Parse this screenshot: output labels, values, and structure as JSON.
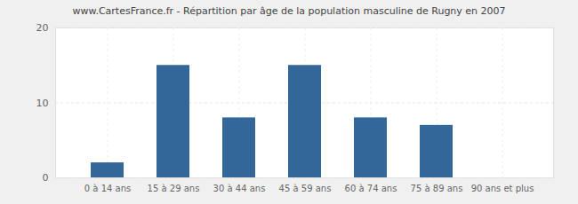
{
  "chart_data": {
    "type": "bar",
    "title": "www.CartesFrance.fr - Répartition par âge de la population masculine de Rugny en 2007",
    "categories": [
      "0 à 14 ans",
      "15 à 29 ans",
      "30 à 44 ans",
      "45 à 59 ans",
      "60 à 74 ans",
      "75 à 89 ans",
      "90 ans et plus"
    ],
    "values": [
      2,
      15,
      8,
      15,
      8,
      7,
      0
    ],
    "color": "#336699",
    "ylim": [
      0,
      20
    ],
    "yticks": [
      0,
      10,
      20
    ],
    "grid": true
  }
}
